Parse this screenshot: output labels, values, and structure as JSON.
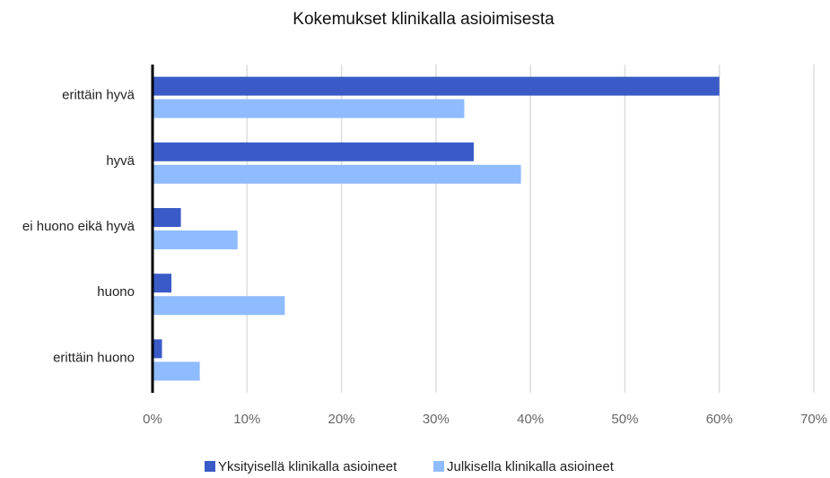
{
  "chart_data": {
    "type": "hbar",
    "title": "Kokemukset klinikalla asioimisesta",
    "categories": [
      "erittäin hyvä",
      "hyvä",
      "ei huono eikä hyvä",
      "huono",
      "erittäin huono"
    ],
    "series": [
      {
        "name": "Yksityisellä klinikalla asioineet",
        "color": "#3a5bc7",
        "values": [
          60,
          34,
          3,
          2,
          1
        ]
      },
      {
        "name": "Julkisella klinikalla asioineet",
        "color": "#8fbcff",
        "values": [
          33,
          39,
          9,
          14,
          5
        ]
      }
    ],
    "xlim": [
      0,
      70
    ],
    "xticks": [
      {
        "value": 0,
        "label": "0%"
      },
      {
        "value": 10,
        "label": "10%"
      },
      {
        "value": 20,
        "label": "20%"
      },
      {
        "value": 30,
        "label": "30%"
      },
      {
        "value": 40,
        "label": "40%"
      },
      {
        "value": 50,
        "label": "50%"
      },
      {
        "value": 60,
        "label": "60%"
      },
      {
        "value": 70,
        "label": "70%"
      }
    ],
    "grid": true,
    "legend": "bottom"
  }
}
